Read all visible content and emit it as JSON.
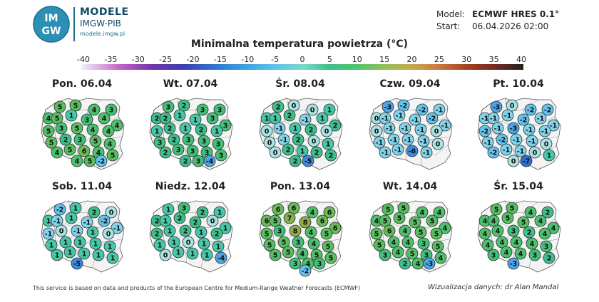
{
  "header": {
    "logo_text_top": "IM",
    "logo_text_bottom": "GW",
    "brand_title": "MODELE",
    "brand_subtitle": "IMGW-PIB",
    "brand_url": "modele.imgw.pl",
    "model_label": "Model:",
    "model_value": "ECMWF HRES 0.1°",
    "start_label": "Start:",
    "start_value": "06.04.2026 02:00"
  },
  "title": "Minimalna temperatura powietrza (°C)",
  "colorbar": {
    "ticks": [
      "-40",
      "-35",
      "-30",
      "-25",
      "-20",
      "-15",
      "-10",
      "-5",
      "0",
      "5",
      "10",
      "15",
      "20",
      "25",
      "30",
      "35",
      "40"
    ],
    "min": -40,
    "max": 40
  },
  "maps": [
    {
      "day": "Pon. 06.04",
      "values": [
        4,
        5,
        5,
        4,
        3,
        5,
        1,
        3,
        4,
        4,
        5,
        3,
        5,
        4,
        4,
        5,
        2,
        3,
        5,
        4,
        4,
        5,
        6,
        4,
        5,
        4,
        5,
        -2
      ]
    },
    {
      "day": "Wt. 07.04",
      "values": [
        2,
        3,
        2,
        3,
        3,
        2,
        1,
        1,
        3,
        3,
        1,
        2,
        1,
        2,
        1,
        3,
        2,
        3,
        3,
        3,
        2,
        3,
        3,
        3,
        3,
        2,
        3,
        -4
      ]
    },
    {
      "day": "Śr. 08.04",
      "values": [
        1,
        2,
        0,
        0,
        1,
        1,
        2,
        -1,
        1,
        2,
        0,
        -1,
        1,
        2,
        0,
        0,
        -1,
        2,
        0,
        1,
        0,
        2,
        1,
        2,
        2,
        2,
        -5
      ]
    },
    {
      "day": "Czw. 09.04",
      "values": [
        0,
        -3,
        -2,
        -2,
        -1,
        -1,
        -1,
        -1,
        -2,
        -1,
        0,
        -1,
        -1,
        -1,
        0,
        -1,
        -1,
        -1,
        -1,
        0,
        -1,
        -1,
        -6,
        -1
      ]
    },
    {
      "day": "Pt. 10.04",
      "values": [
        -1,
        -3,
        0,
        -2,
        -2,
        -1,
        -1,
        -2,
        -1,
        -1,
        -2,
        -1,
        -3,
        -1,
        -1,
        -1,
        -2,
        -1,
        -1,
        0,
        -2,
        -1,
        -1,
        0,
        1,
        0,
        -7
      ]
    },
    {
      "day": "Sob. 11.04",
      "values": [
        1,
        -2,
        1,
        2,
        0,
        -1,
        1,
        -1,
        -2,
        -1,
        -1,
        0,
        -1,
        1,
        0,
        1,
        1,
        1,
        1,
        1,
        1,
        1,
        1,
        1,
        1,
        -5
      ]
    },
    {
      "day": "Niedz. 12.04",
      "values": [
        2,
        1,
        3,
        2,
        1,
        1,
        2,
        2,
        0,
        1,
        2,
        1,
        2,
        1,
        2,
        1,
        1,
        0,
        1,
        1,
        0,
        1,
        1,
        1,
        -4
      ]
    },
    {
      "day": "Pon. 13.04",
      "values": [
        6,
        6,
        6,
        4,
        6,
        5,
        7,
        8,
        6,
        6,
        5,
        3,
        8,
        4,
        5,
        5,
        5,
        3,
        4,
        5,
        5,
        5,
        4,
        5,
        5,
        3,
        4,
        3,
        -2
      ]
    },
    {
      "day": "Wt. 14.04",
      "values": [
        4,
        5,
        5,
        4,
        4,
        5,
        5,
        5,
        5,
        4,
        5,
        6,
        4,
        5,
        5,
        5,
        4,
        4,
        3,
        5,
        3,
        4,
        5,
        3,
        4,
        2,
        4,
        -3
      ]
    },
    {
      "day": "Śr. 15.04",
      "values": [
        4,
        5,
        5,
        4,
        2,
        4,
        5,
        5,
        4,
        4,
        4,
        4,
        3,
        2,
        4,
        4,
        4,
        4,
        4,
        3,
        3,
        4,
        4,
        3,
        2,
        -3
      ]
    }
  ],
  "footer": {
    "left": "This service is based on data and products of the European Centre for Medium-Range Weather Forecasts (ECMWF)",
    "right": "Wizualizacja danych: dr Alan Mandal"
  }
}
